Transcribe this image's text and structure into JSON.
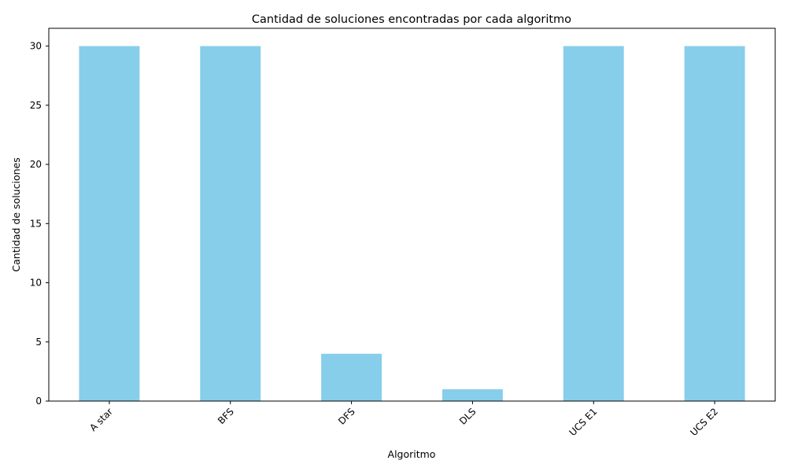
{
  "chart_data": {
    "type": "bar",
    "title": "Cantidad de soluciones encontradas por cada algoritmo",
    "xlabel": "Algoritmo",
    "ylabel": "Cantidad de soluciones",
    "categories": [
      "A star",
      "BFS",
      "DFS",
      "DLS",
      "UCS E1",
      "UCS E2"
    ],
    "values": [
      30,
      30,
      4,
      1,
      30,
      30
    ],
    "ylim": [
      0,
      31.5
    ],
    "yticks": [
      0,
      5,
      10,
      15,
      20,
      25,
      30
    ],
    "grid": false,
    "legend": "none",
    "bar_color": "#87ceeb",
    "xtick_rotation": "45"
  }
}
